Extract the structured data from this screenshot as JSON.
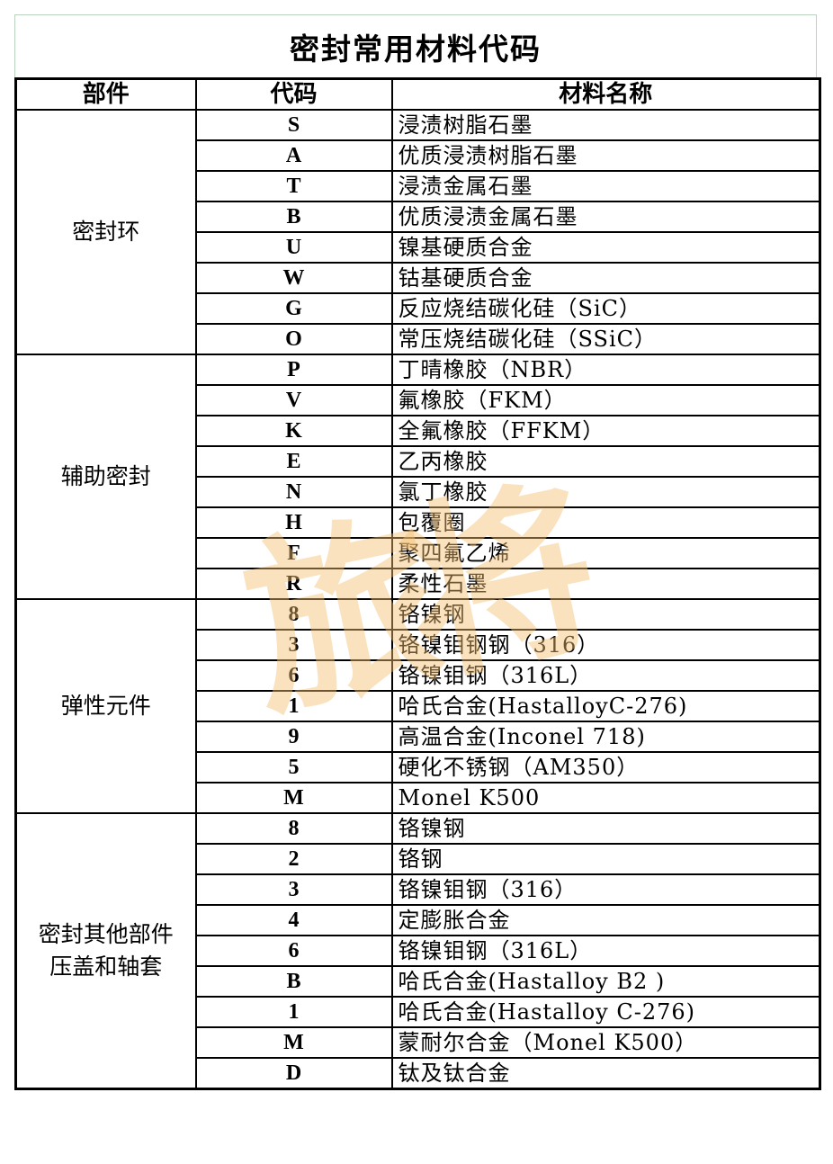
{
  "title": "密封常用材料代码",
  "headers": {
    "part": "部件",
    "code": "代码",
    "name": "材料名称"
  },
  "watermark_text": "旅将",
  "watermark_color": "#f5be6e",
  "groups": [
    {
      "part": "密封环",
      "rows": [
        {
          "code": "S",
          "name": "浸渍树脂石墨"
        },
        {
          "code": "A",
          "name": "优质浸渍树脂石墨"
        },
        {
          "code": "T",
          "name": "浸渍金属石墨"
        },
        {
          "code": "B",
          "name": "优质浸渍金属石墨"
        },
        {
          "code": "U",
          "name": "镍基硬质合金"
        },
        {
          "code": "W",
          "name": "钴基硬质合金"
        },
        {
          "code": "G",
          "name": "反应烧结碳化硅（SiC）"
        },
        {
          "code": "O",
          "name": "常压烧结碳化硅（SSiC）"
        }
      ]
    },
    {
      "part": "辅助密封",
      "rows": [
        {
          "code": "P",
          "name": "丁晴橡胶（NBR）"
        },
        {
          "code": "V",
          "name": "氟橡胶（FKM）"
        },
        {
          "code": "K",
          "name": "全氟橡胶（FFKM）"
        },
        {
          "code": "E",
          "name": "乙丙橡胶"
        },
        {
          "code": "N",
          "name": "氯丁橡胶"
        },
        {
          "code": "H",
          "name": "包覆圈"
        },
        {
          "code": "F",
          "name": "聚四氟乙烯"
        },
        {
          "code": "R",
          "name": "柔性石墨"
        }
      ]
    },
    {
      "part": "弹性元件",
      "rows": [
        {
          "code": "8",
          "name": "铬镍钢"
        },
        {
          "code": "3",
          "name": "铬镍钼钢钢（316）"
        },
        {
          "code": "6",
          "name": "铬镍钼钢（316L）"
        },
        {
          "code": "1",
          "name": "哈氏合金(HastalloyC-276)"
        },
        {
          "code": "9",
          "name": "高温合金(Inconel 718)"
        },
        {
          "code": "5",
          "name": "硬化不锈钢（AM350）"
        },
        {
          "code": "M",
          "name": "Monel K500"
        }
      ]
    },
    {
      "part": "密封其他部件\n压盖和轴套",
      "rows": [
        {
          "code": "8",
          "name": "铬镍钢"
        },
        {
          "code": "2",
          "name": "铬钢"
        },
        {
          "code": "3",
          "name": "铬镍钼钢（316）"
        },
        {
          "code": "4",
          "name": "定膨胀合金"
        },
        {
          "code": "6",
          "name": "铬镍钼钢（316L）"
        },
        {
          "code": "B",
          "name": "哈氏合金(Hastalloy B2 )"
        },
        {
          "code": "1",
          "name": "哈氏合金(Hastalloy C-276)"
        },
        {
          "code": "M",
          "name": "蒙耐尔合金（Monel K500）"
        },
        {
          "code": "D",
          "name": "钛及钛合金"
        }
      ]
    }
  ]
}
